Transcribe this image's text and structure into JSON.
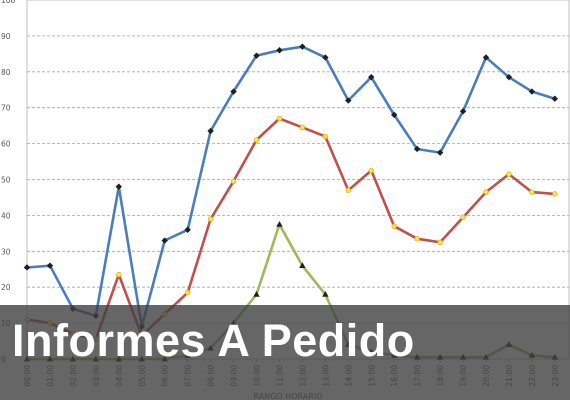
{
  "banner": {
    "title": "Informes A Pedido"
  },
  "chart_data": {
    "type": "line",
    "title": "",
    "xlabel": "RANGO HORARIO",
    "ylabel": "",
    "categories": [
      "00:00",
      "01:00",
      "02:00",
      "03:00",
      "04:00",
      "05:00",
      "06:00",
      "07:00",
      "08:00",
      "09:00",
      "10:00",
      "11:00",
      "12:00",
      "13:00",
      "14:00",
      "15:00",
      "16:00",
      "17:00",
      "18:00",
      "19:00",
      "20:00",
      "21:00",
      "22:00",
      "23:00"
    ],
    "y_ticks": [
      "0",
      "10",
      "20",
      "30",
      "40",
      "50",
      "60",
      "70",
      "80",
      "90",
      "100"
    ],
    "ylim": [
      0,
      100
    ],
    "grid": true,
    "series": [
      {
        "color": "#4a7ebb",
        "marker": "diamond",
        "values": [
          25.5,
          26,
          14,
          12,
          48,
          9,
          33,
          36,
          63.5,
          74.5,
          84.5,
          86,
          87,
          84,
          72,
          78.5,
          68,
          58.5,
          57.5,
          69,
          84,
          78.5,
          74.5,
          72.5
        ]
      },
      {
        "color": "#c0504d",
        "marker": "circle",
        "values": [
          11,
          10,
          7,
          5.5,
          23.5,
          6.5,
          12.5,
          18.5,
          39,
          49.5,
          61,
          67,
          64.5,
          62,
          47,
          52.5,
          37,
          33.5,
          32.5,
          39.5,
          46.5,
          51.5,
          46.5,
          46
        ]
      },
      {
        "color": "#9bbb59",
        "marker": "triangle",
        "values": [
          0,
          0,
          0,
          0,
          0,
          0,
          0,
          1,
          3,
          10,
          18,
          37.5,
          26,
          18,
          4,
          2,
          1,
          0.5,
          0.5,
          0.5,
          0.5,
          4,
          1,
          0.5
        ]
      }
    ]
  }
}
